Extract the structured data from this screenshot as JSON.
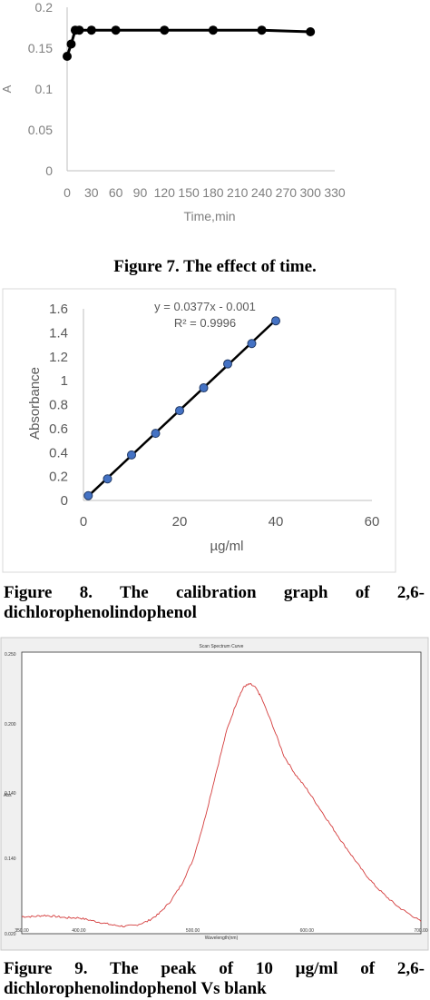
{
  "figure7": {
    "caption": "Figure 7. The effect of time.",
    "chart_data": {
      "type": "line",
      "xlabel": "Time,min",
      "ylabel": "A",
      "xlim": [
        0,
        330
      ],
      "ylim": [
        0,
        0.2
      ],
      "xticks": [
        "0",
        "30",
        "60",
        "90",
        "120",
        "150",
        "180",
        "210",
        "240",
        "270",
        "300",
        "330"
      ],
      "yticks": [
        "0",
        "0.05",
        "0.1",
        "0.15",
        "0.2"
      ],
      "x": [
        0,
        5,
        10,
        15,
        30,
        60,
        120,
        180,
        240,
        300
      ],
      "y": [
        0.14,
        0.155,
        0.172,
        0.172,
        0.172,
        0.172,
        0.172,
        0.172,
        0.172,
        0.17
      ],
      "line_color": "#000000",
      "marker_color": "#000000"
    }
  },
  "figure8": {
    "caption_line1": "Figure 8. The calibration graph of 2,6-",
    "caption_line2": "dichlorophenolindophenol",
    "chart_data": {
      "type": "scatter",
      "xlabel": "µg/ml",
      "ylabel": "Absorbance",
      "xlim": [
        0,
        60
      ],
      "ylim": [
        0,
        1.6
      ],
      "xticks": [
        "0",
        "20",
        "40",
        "60"
      ],
      "yticks": [
        "0",
        "0.2",
        "0.4",
        "0.6",
        "0.8",
        "1",
        "1.2",
        "1.4",
        "1.6"
      ],
      "x": [
        1,
        5,
        10,
        15,
        20,
        25,
        30,
        35,
        40
      ],
      "y": [
        0.04,
        0.18,
        0.38,
        0.56,
        0.75,
        0.94,
        1.14,
        1.31,
        1.5
      ],
      "trendline": {
        "slope": 0.0377,
        "intercept": -0.001
      },
      "equation": "y = 0.0377x - 0.001",
      "r_squared": "R² = 0.9996",
      "marker_color": "#4472c4",
      "line_color": "#000000"
    }
  },
  "figure9": {
    "caption_line1": "Figure 9. The peak of 10 µg/ml of 2,6-",
    "caption_line2": "dichlorophenolindophenol Vs blank",
    "chart_data": {
      "type": "line",
      "title": "Scan Spectrum Curve",
      "xlabel": "Wavelength(nm)",
      "ylabel": "Abs",
      "xlim": [
        350,
        700
      ],
      "ylim": [
        0.02,
        0.25
      ],
      "xticks": [
        "350.00",
        "400.00",
        "500.00",
        "600.00",
        "700.00"
      ],
      "yticks": [
        "0.020",
        "0.140",
        "0.140",
        "0.200",
        "0.250"
      ],
      "x": [
        350,
        360,
        370,
        380,
        390,
        400,
        410,
        420,
        430,
        440,
        450,
        460,
        470,
        480,
        490,
        500,
        510,
        520,
        530,
        540,
        545,
        550,
        555,
        560,
        570,
        580,
        590,
        600,
        610,
        620,
        630,
        640,
        650,
        660,
        670,
        680,
        690,
        700
      ],
      "y": [
        0.034,
        0.034,
        0.035,
        0.034,
        0.033,
        0.033,
        0.031,
        0.029,
        0.027,
        0.026,
        0.027,
        0.03,
        0.036,
        0.046,
        0.06,
        0.08,
        0.112,
        0.15,
        0.187,
        0.213,
        0.222,
        0.224,
        0.221,
        0.213,
        0.19,
        0.165,
        0.15,
        0.138,
        0.124,
        0.11,
        0.096,
        0.083,
        0.07,
        0.059,
        0.05,
        0.042,
        0.036,
        0.03
      ],
      "line_color": "#d43c3c"
    }
  }
}
